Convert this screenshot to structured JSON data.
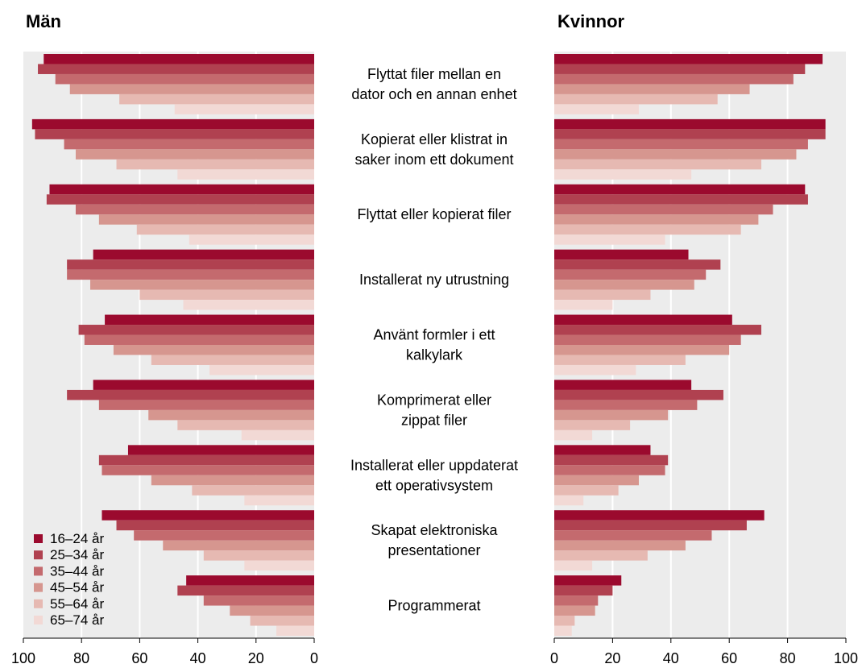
{
  "chart_data": {
    "type": "bar",
    "orientation": "horizontal",
    "layout": "back-to-back",
    "categories": [
      [
        "Flyttat filer mellan en",
        "dator och en annan enhet"
      ],
      [
        "Kopierat eller klistrat in",
        "saker inom ett dokument"
      ],
      [
        "Flyttat eller kopierat filer"
      ],
      [
        "Installerat ny utrustning"
      ],
      [
        "Använt formler i ett",
        "kalkylark"
      ],
      [
        "Komprimerat eller",
        "zippat filer"
      ],
      [
        "Installerat eller uppdaterat",
        "ett operativsystem"
      ],
      [
        "Skapat elektroniska",
        "presentationer"
      ],
      [
        "Programmerat"
      ]
    ],
    "series_names": [
      "16–24 år",
      "25–34 år",
      "35–44 år",
      "45–54 år",
      "55–64 år",
      "65–74 år"
    ],
    "colors": [
      "#9b0a2e",
      "#b04150",
      "#c46a6e",
      "#d6968f",
      "#e6b9b2",
      "#f2d9d5"
    ],
    "xlim": [
      0,
      100
    ],
    "ticks": [
      0,
      20,
      40,
      60,
      80,
      100
    ],
    "grid": true,
    "legend_position": "bottom-left",
    "panels": [
      {
        "title": "Män",
        "direction": "reversed",
        "values": [
          [
            93,
            95,
            89,
            84,
            67,
            48
          ],
          [
            97,
            96,
            86,
            82,
            68,
            47
          ],
          [
            91,
            92,
            82,
            74,
            61,
            43
          ],
          [
            76,
            85,
            85,
            77,
            60,
            45
          ],
          [
            72,
            81,
            79,
            69,
            56,
            36
          ],
          [
            76,
            85,
            74,
            57,
            47,
            25
          ],
          [
            64,
            74,
            73,
            56,
            42,
            24
          ],
          [
            73,
            68,
            62,
            52,
            38,
            24
          ],
          [
            44,
            47,
            38,
            29,
            22,
            13
          ]
        ]
      },
      {
        "title": "Kvinnor",
        "direction": "normal",
        "values": [
          [
            92,
            86,
            82,
            67,
            56,
            29
          ],
          [
            93,
            93,
            87,
            83,
            71,
            47
          ],
          [
            86,
            87,
            75,
            70,
            64,
            38
          ],
          [
            46,
            57,
            52,
            48,
            33,
            20
          ],
          [
            61,
            71,
            64,
            60,
            45,
            28
          ],
          [
            47,
            58,
            49,
            39,
            26,
            13
          ],
          [
            33,
            39,
            38,
            29,
            22,
            10
          ],
          [
            72,
            66,
            54,
            45,
            32,
            13
          ],
          [
            23,
            20,
            15,
            14,
            7,
            6
          ]
        ]
      }
    ]
  }
}
